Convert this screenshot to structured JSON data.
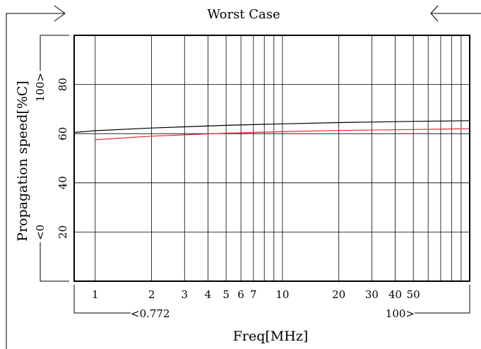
{
  "chart_data": {
    "type": "line",
    "title": "Worst Case",
    "xlabel": "Freq[MHz]",
    "ylabel": "Propagation speed[%C]",
    "x_scale": "log",
    "xlim": [
      0.772,
      100
    ],
    "ylim": [
      0,
      100
    ],
    "grid": true,
    "x_ticks": [
      1,
      2,
      3,
      4,
      5,
      6,
      7,
      10,
      20,
      30,
      40,
      50
    ],
    "x_tick_labels": [
      "1",
      "2",
      "3",
      "4",
      "5",
      "6",
      "7",
      "10",
      "20",
      "30",
      "40",
      "50"
    ],
    "y_ticks": [
      20,
      40,
      60,
      80
    ],
    "y_tick_labels": [
      "20",
      "40",
      "60",
      "80"
    ],
    "x_range_labels": {
      "min": "<0.772",
      "max": "100>"
    },
    "y_range_labels": {
      "min": "<0",
      "max": "100>"
    },
    "series": [
      {
        "color": "#000000",
        "x": [
          0.772,
          1,
          2,
          5,
          10,
          20,
          50,
          100
        ],
        "y": [
          60.5,
          61.2,
          62.3,
          63.4,
          64.0,
          64.5,
          65.0,
          65.3
        ]
      },
      {
        "color": "#e8262b",
        "x": [
          1,
          2,
          5,
          10,
          20,
          50,
          100
        ],
        "y": [
          57.5,
          59.0,
          60.2,
          60.8,
          61.3,
          61.7,
          62.0
        ]
      }
    ]
  }
}
